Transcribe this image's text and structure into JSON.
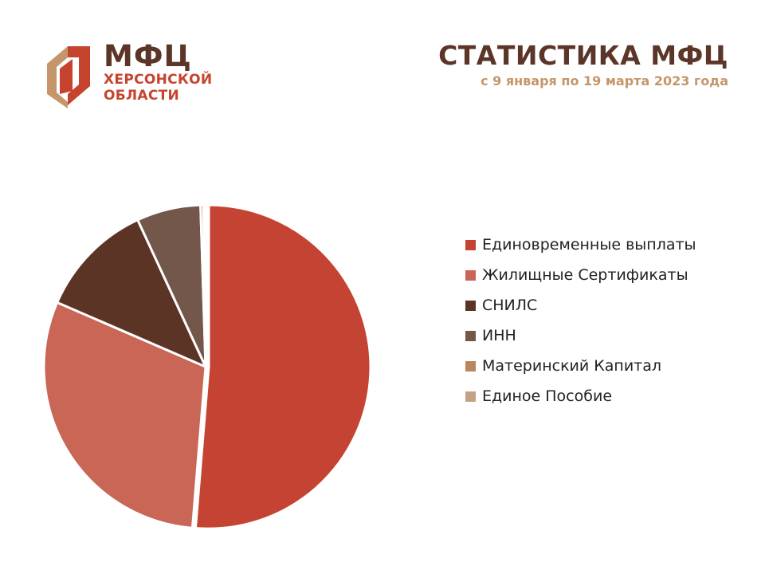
{
  "logo": {
    "name": "МФЦ",
    "region_line1": "ХЕРСОНСКОЙ",
    "region_line2": "ОБЛАСТИ"
  },
  "header": {
    "title": "СТАТИСТИКА МФЦ",
    "subtitle": "с 9 января по 19 марта 2023 года"
  },
  "colors": {
    "brand_dark": "#5b3528",
    "brand_red": "#c6442f",
    "brand_tan": "#c5966a"
  },
  "chart_data": {
    "type": "pie",
    "title": "",
    "legend_position": "right",
    "slices": [
      {
        "label": "Единовременные выплаты",
        "value": 51.3,
        "color": "#c54332"
      },
      {
        "label": "Жилищные Сертификаты",
        "value": 30.2,
        "color": "#c96656"
      },
      {
        "label": "СНИЛС",
        "value": 11.6,
        "color": "#5c3426"
      },
      {
        "label": "ИНН",
        "value": 6.4,
        "color": "#73574a"
      },
      {
        "label": "Материнский Капитал",
        "value": 0.3,
        "color": "#b8875d"
      },
      {
        "label": "Единое Пособие",
        "value": 0.2,
        "color": "#c2a283"
      }
    ]
  }
}
